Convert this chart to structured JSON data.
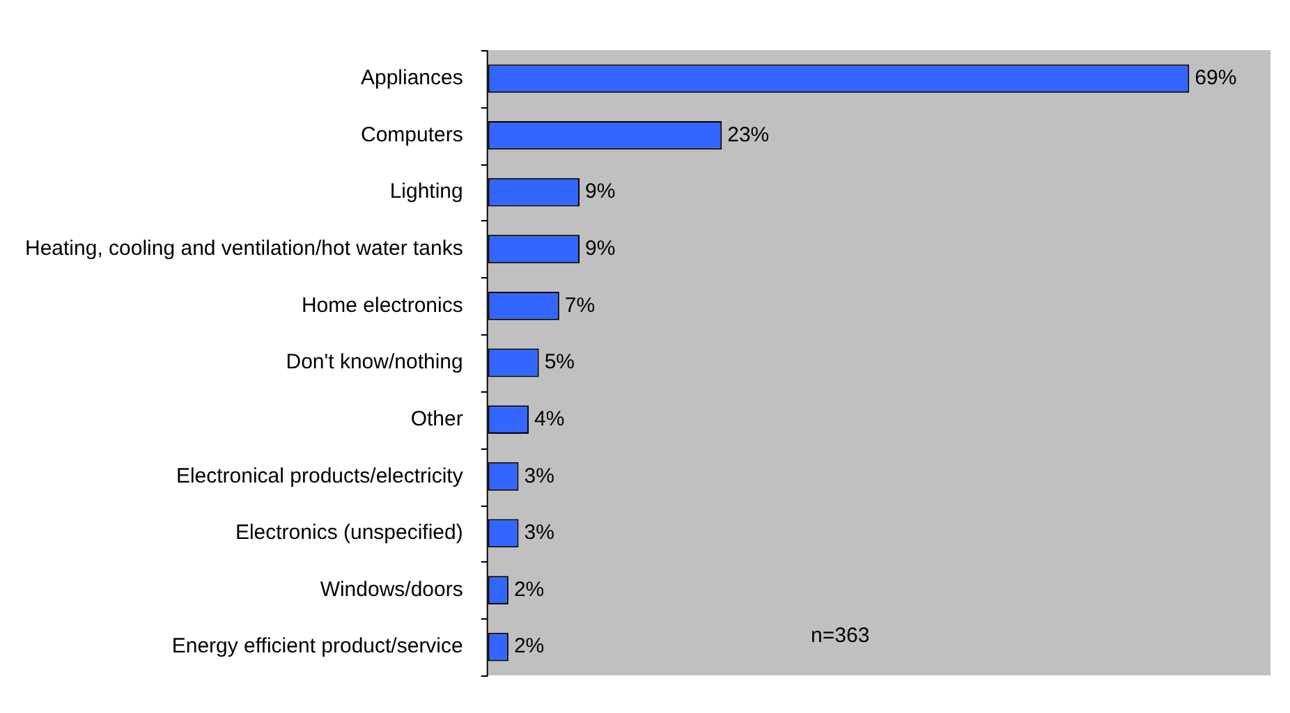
{
  "chart_data": {
    "type": "bar",
    "orientation": "horizontal",
    "categories": [
      "Appliances",
      "Computers",
      "Lighting",
      "Heating, cooling and ventilation/hot water tanks",
      "Home electronics",
      "Don't know/nothing",
      "Other",
      "Electronical products/electricity",
      "Electronics (unspecified)",
      "Windows/doors",
      "Energy efficient product/service"
    ],
    "values": [
      69,
      23,
      9,
      9,
      7,
      5,
      4,
      3,
      3,
      2,
      2
    ],
    "value_labels": [
      "69%",
      "23%",
      "9%",
      "9%",
      "7%",
      "5%",
      "4%",
      "3%",
      "3%",
      "2%",
      "2%"
    ],
    "color": "#3366ff",
    "xlim": [
      0,
      77
    ],
    "legend": false,
    "annotations": [
      "n=363"
    ]
  }
}
